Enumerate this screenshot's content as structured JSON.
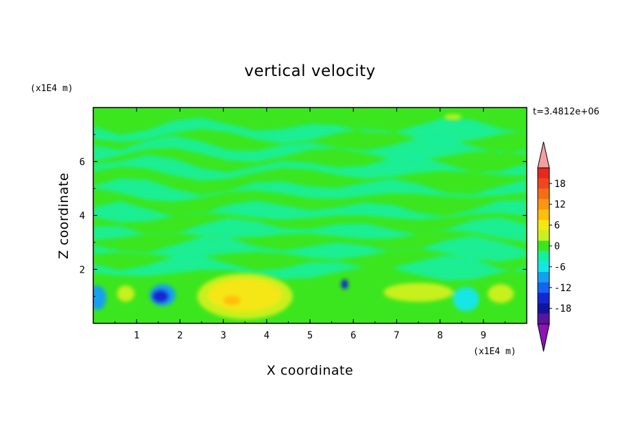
{
  "chart_data": {
    "type": "heatmap",
    "title": "vertical velocity",
    "xlabel": "X coordinate",
    "ylabel": "Z coordinate",
    "x_unit": "(x1E4 m)",
    "y_unit": "(x1E4 m)",
    "time_label": "t=3.4812e+06",
    "xlim": [
      0,
      10
    ],
    "ylim": [
      0,
      8
    ],
    "x_ticks": [
      1,
      2,
      3,
      4,
      5,
      6,
      7,
      8,
      9
    ],
    "y_ticks": [
      2,
      4,
      6
    ],
    "colorbar": {
      "ticks": [
        "18",
        "12",
        "6",
        "0",
        "-6",
        "-12",
        "-18"
      ],
      "tick_values": [
        18,
        12,
        6,
        0,
        -6,
        -12,
        -18
      ],
      "levels": [
        {
          "value": 21,
          "color": "#e8281e"
        },
        {
          "value": 18,
          "color": "#f0461e"
        },
        {
          "value": 15,
          "color": "#f56e14"
        },
        {
          "value": 12,
          "color": "#fa9614"
        },
        {
          "value": 9,
          "color": "#ffbe0a"
        },
        {
          "value": 6,
          "color": "#f5e614"
        },
        {
          "value": 3,
          "color": "#c8f01e"
        },
        {
          "value": 0,
          "color": "#3ce61e"
        },
        {
          "value": -3,
          "color": "#14f0a0"
        },
        {
          "value": -6,
          "color": "#14e6e6"
        },
        {
          "value": -9,
          "color": "#14a0f0"
        },
        {
          "value": -12,
          "color": "#1464f0"
        },
        {
          "value": -15,
          "color": "#1428d2"
        },
        {
          "value": -18,
          "color": "#1414a0"
        },
        {
          "value": -21,
          "color": "#5a14a0"
        }
      ],
      "over_color": "#f5a0a0",
      "under_color": "#8c14b4"
    },
    "features": [
      {
        "x": 3.5,
        "z": 1.0,
        "rx": 1.1,
        "rz": 0.85,
        "value": 6,
        "color": "#c8f01e"
      },
      {
        "x": 3.5,
        "z": 1.05,
        "rx": 0.85,
        "rz": 0.6,
        "value": 9,
        "color": "#f5e614"
      },
      {
        "x": 3.2,
        "z": 0.85,
        "rx": 0.2,
        "rz": 0.18,
        "value": 12,
        "color": "#ffbe0a"
      },
      {
        "x": 1.6,
        "z": 1.05,
        "rx": 0.3,
        "rz": 0.4,
        "value": -9,
        "color": "#14a0f0"
      },
      {
        "x": 1.55,
        "z": 1.0,
        "rx": 0.2,
        "rz": 0.25,
        "value": -15,
        "color": "#1428d2"
      },
      {
        "x": 0.1,
        "z": 0.95,
        "rx": 0.2,
        "rz": 0.45,
        "value": -9,
        "color": "#14a0f0"
      },
      {
        "x": 5.8,
        "z": 1.45,
        "rx": 0.08,
        "rz": 0.18,
        "value": -15,
        "color": "#1428d2"
      },
      {
        "x": 7.5,
        "z": 1.15,
        "rx": 0.8,
        "rz": 0.35,
        "value": 3,
        "color": "#c8f01e"
      },
      {
        "x": 8.6,
        "z": 0.9,
        "rx": 0.3,
        "rz": 0.45,
        "value": -6,
        "color": "#14e6e6"
      },
      {
        "x": 9.4,
        "z": 1.1,
        "rx": 0.3,
        "rz": 0.35,
        "value": 3,
        "color": "#c8f01e"
      },
      {
        "x": 0.75,
        "z": 1.1,
        "rx": 0.2,
        "rz": 0.3,
        "value": 3,
        "color": "#c8f01e"
      },
      {
        "x": 8.3,
        "z": 7.65,
        "rx": 0.2,
        "rz": 0.1,
        "value": 3,
        "color": "#c8f01e"
      }
    ],
    "background_color": "#3ce61e",
    "near_zero_color": "#14f0a0",
    "grid": false
  }
}
